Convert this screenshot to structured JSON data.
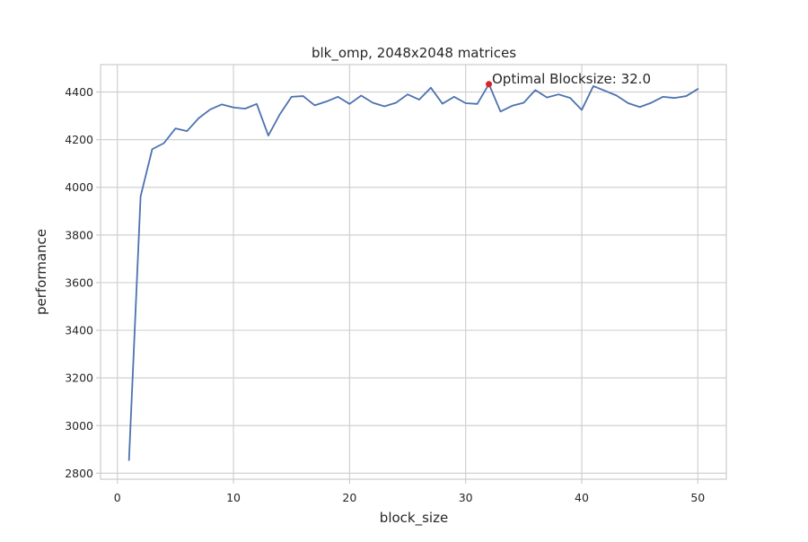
{
  "chart_data": {
    "type": "line",
    "title": "blk_omp, 2048x2048 matrices",
    "xlabel": "block_size",
    "ylabel": "performance",
    "xlim": [
      -1.45,
      52.45
    ],
    "ylim": [
      2775,
      4515
    ],
    "xticks": [
      0,
      10,
      20,
      30,
      40,
      50
    ],
    "yticks": [
      2800,
      3000,
      3200,
      3400,
      3600,
      3800,
      4000,
      4200,
      4400
    ],
    "grid": true,
    "line_color": "#4c72b0",
    "highlight_color": "#d62728",
    "series": [
      {
        "x": [
          1,
          2,
          3,
          4,
          5,
          6,
          7,
          8,
          9,
          10,
          11,
          12,
          13,
          14,
          15,
          16,
          17,
          18,
          19,
          20,
          21,
          22,
          23,
          24,
          25,
          26,
          27,
          28,
          29,
          30,
          31,
          32,
          33,
          34,
          35,
          36,
          37,
          38,
          39,
          40,
          41,
          42,
          43,
          44,
          45,
          46,
          47,
          48,
          49,
          50
        ],
        "values": [
          2855,
          3962,
          4160,
          4185,
          4247,
          4236,
          4290,
          4327,
          4348,
          4335,
          4330,
          4350,
          4217,
          4307,
          4380,
          4383,
          4344,
          4360,
          4380,
          4350,
          4385,
          4355,
          4340,
          4355,
          4390,
          4368,
          4418,
          4351,
          4380,
          4353,
          4350,
          4433,
          4318,
          4342,
          4355,
          4408,
          4377,
          4390,
          4375,
          4325,
          4425,
          4405,
          4385,
          4353,
          4337,
          4355,
          4380,
          4375,
          4383,
          4413
        ]
      }
    ],
    "highlight_point": {
      "x": 32,
      "y": 4433
    },
    "annotation": "Optimal Blocksize: 32.0"
  }
}
